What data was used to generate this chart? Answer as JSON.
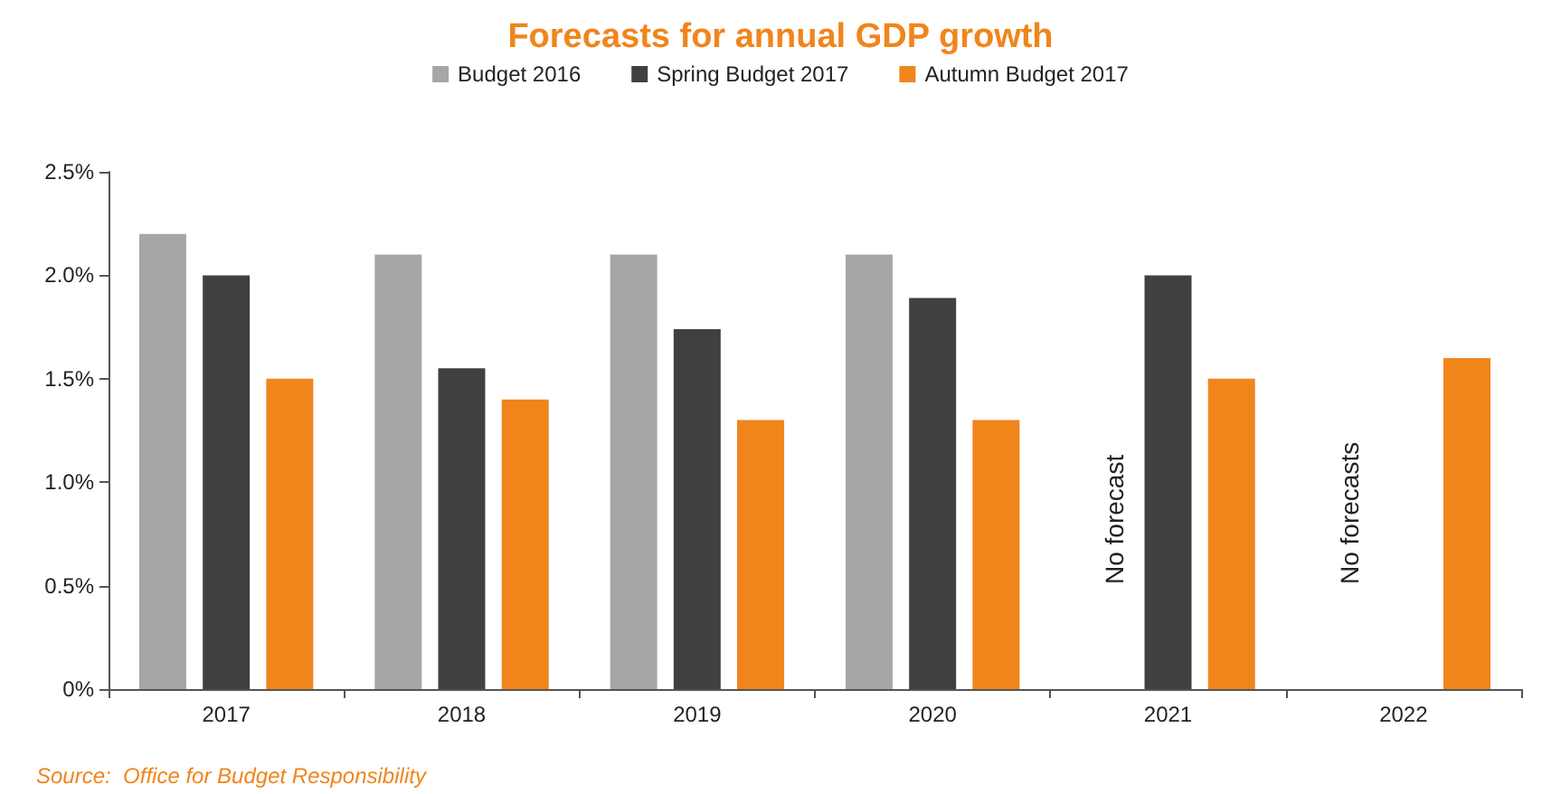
{
  "chart_data": {
    "type": "bar",
    "title": "Forecasts for annual GDP growth",
    "categories": [
      "2017",
      "2018",
      "2019",
      "2020",
      "2021",
      "2022"
    ],
    "series": [
      {
        "name": "Budget 2016",
        "color": "#a6a6a6",
        "values": [
          2.2,
          2.1,
          2.1,
          2.1,
          null,
          null
        ]
      },
      {
        "name": "Spring Budget 2017",
        "color": "#404040",
        "values": [
          2.0,
          1.55,
          1.74,
          1.89,
          2.0,
          null
        ]
      },
      {
        "name": "Autumn Budget 2017",
        "color": "#f0851c",
        "values": [
          1.5,
          1.4,
          1.3,
          1.3,
          1.5,
          1.6
        ]
      }
    ],
    "ylim": [
      0,
      2.5
    ],
    "yticks": [
      {
        "value": 0,
        "label": "0%"
      },
      {
        "value": 0.5,
        "label": "0.5%"
      },
      {
        "value": 1,
        "label": "1.0%"
      },
      {
        "value": 1.5,
        "label": "1.5%"
      },
      {
        "value": 2,
        "label": "2.0%"
      },
      {
        "value": 2.5,
        "label": "2.5%"
      }
    ],
    "grid": false,
    "legend": "top",
    "annotations": [
      "No forecast",
      "No forecasts",
      "Source:  Office for Budget Responsibility"
    ]
  }
}
